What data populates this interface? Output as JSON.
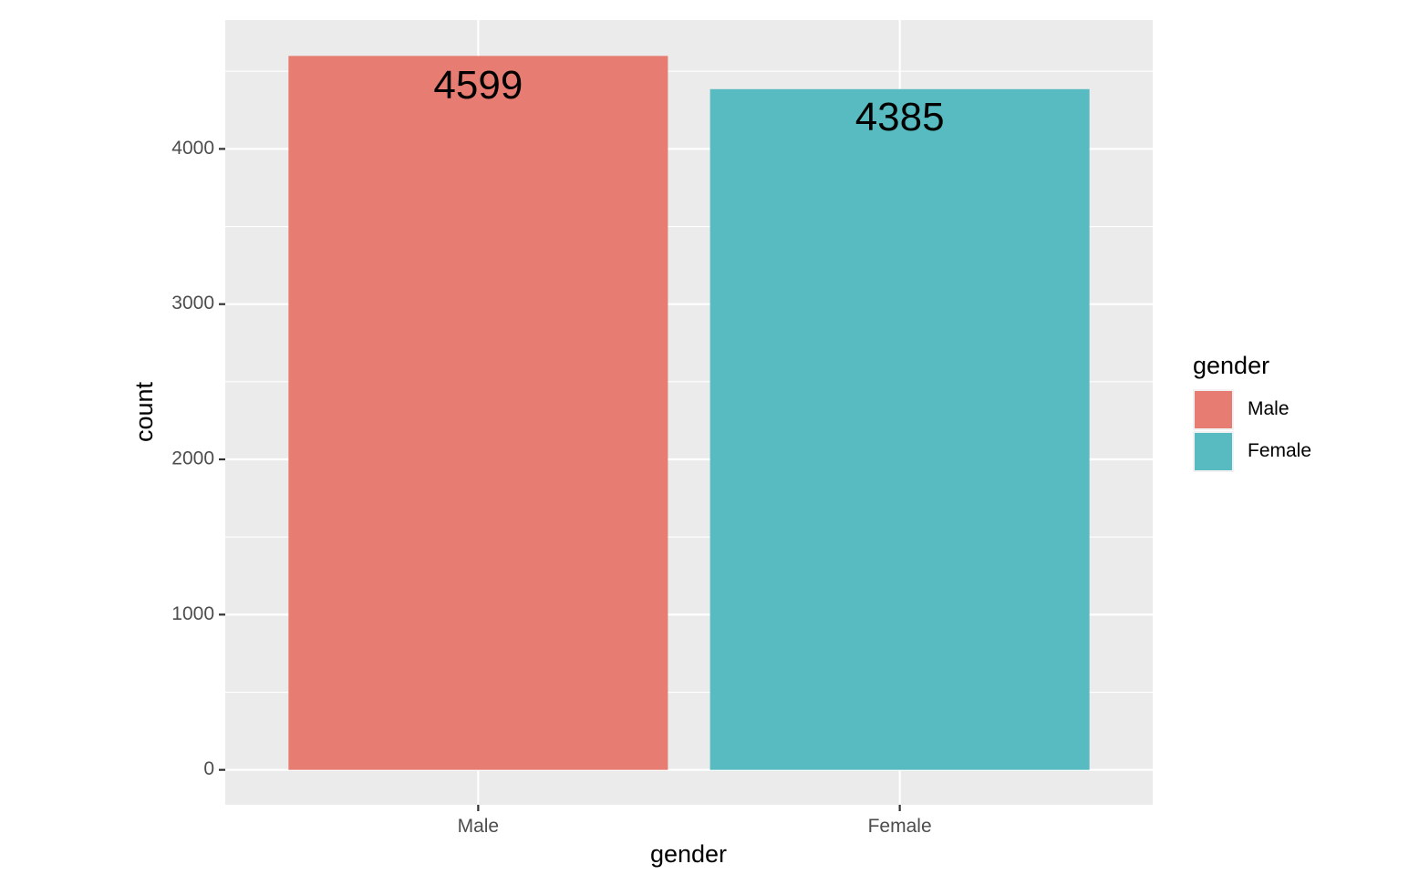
{
  "chart_data": {
    "type": "bar",
    "categories": [
      "Male",
      "Female"
    ],
    "values": [
      4599,
      4385
    ],
    "bar_labels": [
      "4599",
      "4385"
    ],
    "colors": [
      "#E77C73",
      "#57BBC1"
    ],
    "title": "",
    "xlabel": "gender",
    "ylabel": "count",
    "ylim": [
      -225,
      4830
    ],
    "yticks": [
      0,
      1000,
      2000,
      3000,
      4000
    ],
    "ytick_labels": [
      "0",
      "1000",
      "2000",
      "3000",
      "4000"
    ],
    "grid": true,
    "panel_background": "#EBEBEB",
    "gridline_color": "#FFFFFF",
    "legend": {
      "title": "gender",
      "position": "right",
      "entries": [
        "Male",
        "Female"
      ]
    }
  }
}
